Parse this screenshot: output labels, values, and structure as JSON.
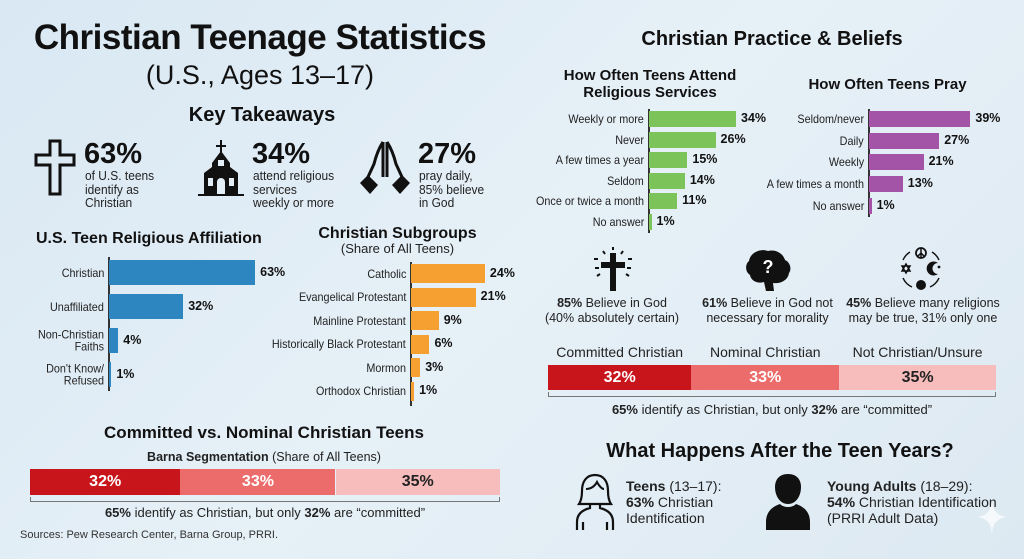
{
  "header": {
    "title": "Christian Teenage Statistics",
    "subtitle": "(U.S., Ages 13–17)"
  },
  "key_takeaways": {
    "heading": "Key Takeaways",
    "items": [
      {
        "icon": "cross-icon",
        "value": "63%",
        "text": "of U.S. teens identify as Christian"
      },
      {
        "icon": "church-icon",
        "value": "34%",
        "text": "attend religious services weekly or more"
      },
      {
        "icon": "praying-hands-icon",
        "value": "27%",
        "text": "pray daily, 85% believe in God"
      }
    ]
  },
  "practice": {
    "heading": "Christian Practice & Beliefs"
  },
  "chart_data": [
    {
      "type": "bar",
      "orientation": "horizontal",
      "title": "U.S. Teen Religious Affiliation",
      "color": "#2e86c1",
      "categories": [
        "Christian",
        "Unaffiliated",
        "Non-Christian Faiths",
        "Don't Know/ Refused"
      ],
      "values": [
        63,
        32,
        4,
        1
      ],
      "value_labels": [
        "63%",
        "32%",
        "4%",
        "1%"
      ]
    },
    {
      "type": "bar",
      "orientation": "horizontal",
      "title": "Christian Subgroups",
      "subtitle": "(Share of All Teens)",
      "color": "#f5a030",
      "categories": [
        "Catholic",
        "Evangelical Protestant",
        "Mainline Protestant",
        "Historically Black Protestant",
        "Mormon",
        "Orthodox Christian"
      ],
      "values": [
        24,
        21,
        9,
        6,
        3,
        1
      ],
      "value_labels": [
        "24%",
        "21%",
        "9%",
        "6%",
        "3%",
        "1%"
      ]
    },
    {
      "type": "bar",
      "orientation": "horizontal",
      "title": "How Often Teens Attend Religious Services",
      "color": "#7cc35a",
      "categories": [
        "Weekly or more",
        "Never",
        "A few times a year",
        "Seldom",
        "Once or twice a month",
        "No answer"
      ],
      "values": [
        34,
        26,
        15,
        14,
        11,
        1
      ],
      "value_labels": [
        "34%",
        "26%",
        "15%",
        "14%",
        "11%",
        "1%"
      ]
    },
    {
      "type": "bar",
      "orientation": "horizontal",
      "title": "How Often Teens Pray",
      "color": "#a454a6",
      "categories": [
        "Seldom/never",
        "Daily",
        "Weekly",
        "A few times a month",
        "No answer"
      ],
      "values": [
        39,
        27,
        21,
        13,
        1
      ],
      "value_labels": [
        "39%",
        "27%",
        "21%",
        "13%",
        "1%"
      ]
    },
    {
      "type": "bar",
      "orientation": "stacked-horizontal",
      "title": "Committed vs. Nominal Christian Teens",
      "subtitle_bold": "Barna Segmentation",
      "subtitle": "(Share of All Teens)",
      "categories": [
        "Committed Christian",
        "Nominal Christian",
        "Not Christian/Unsure"
      ],
      "values": [
        32,
        33,
        35
      ],
      "value_labels": [
        "32%",
        "33%",
        "35%"
      ],
      "colors": [
        "#c8151b",
        "#ec6b6b",
        "#f7bcbc"
      ],
      "note": {
        "bold1": "65%",
        "t1": " identify as Christian, but only ",
        "bold2": "32%",
        "t2": " are “committed”"
      }
    },
    {
      "type": "bar",
      "orientation": "stacked-horizontal",
      "show_category_labels": true,
      "categories": [
        "Committed Christian",
        "Nominal Christian",
        "Not Christian/Unsure"
      ],
      "values": [
        32,
        33,
        35
      ],
      "value_labels": [
        "32%",
        "33%",
        "35%"
      ],
      "colors": [
        "#c8151b",
        "#ec6b6b",
        "#f7bcbc"
      ],
      "note": {
        "bold1": "65%",
        "t1": " identify as Christian, but only ",
        "bold2": "32%",
        "t2": " are “committed”"
      }
    }
  ],
  "beliefs": [
    {
      "icon": "radiant-cross-icon",
      "bold": "85%",
      "line1": " Believe in God",
      "line2": "(40% absolutely certain)"
    },
    {
      "icon": "brain-question-icon",
      "bold": "61%",
      "line1": " Believe in God not",
      "line2": "necessary for morality"
    },
    {
      "icon": "many-religions-icon",
      "bold": "45%",
      "line1": " Believe many religions",
      "line2": "may be true, 31% only one"
    }
  ],
  "after": {
    "heading": "What Happens After the Teen Years?",
    "groups": [
      {
        "icon": "female-person-icon",
        "bold": "Teens",
        "range": " (13–17):",
        "bold2": "63%",
        "line2": " Christian",
        "line3": "Identification"
      },
      {
        "icon": "male-person-icon",
        "bold": "Young Adults",
        "range": " (18–29):",
        "bold2": "54%",
        "line2": " Christian Identification",
        "line3": "(PRRI Adult Data)"
      }
    ]
  },
  "sources": "Sources: Pew Research Center, Barna Group, PRRI."
}
